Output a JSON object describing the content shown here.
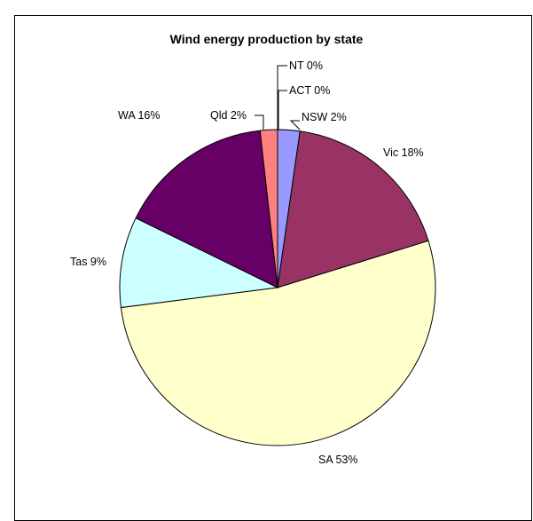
{
  "chart_data": {
    "type": "pie",
    "title": "Wind energy production by state",
    "slices": [
      {
        "label": "NSW 2%",
        "value": 2.3,
        "color": "#9999FF"
      },
      {
        "label": "Vic 18%",
        "value": 18.2,
        "color": "#993366"
      },
      {
        "label": "SA 53%",
        "value": 53.5,
        "color": "#FFFFCC"
      },
      {
        "label": "Tas 9%",
        "value": 9.4,
        "color": "#CCFFFF"
      },
      {
        "label": "WA 16%",
        "value": 16.2,
        "color": "#660066"
      },
      {
        "label": "Qld 2%",
        "value": 1.8,
        "color": "#FF8080"
      },
      {
        "label": "ACT 0%",
        "value": 0.0,
        "color": "#0066CC"
      },
      {
        "label": "NT 0%",
        "value": 0.0,
        "color": "#C0C0FF"
      }
    ]
  }
}
